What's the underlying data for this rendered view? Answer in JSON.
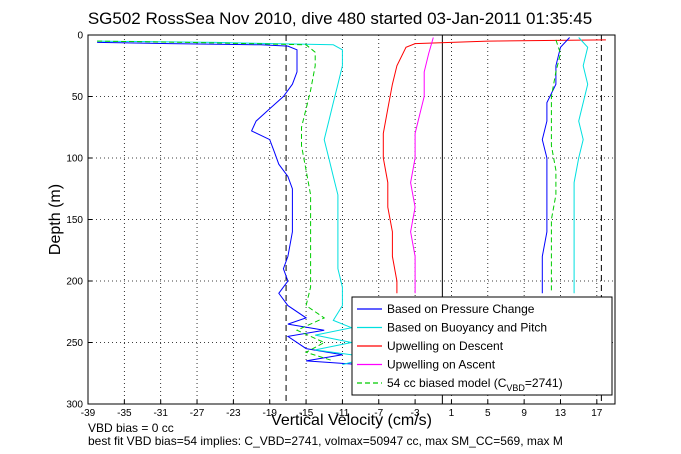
{
  "chart_data": {
    "type": "line",
    "title": "SG502 RossSea Nov 2010, dive 480 started 03-Jan-2011 01:35:45",
    "xlabel": "Vertical Velocity (cm/s)",
    "ylabel": "Depth (m)",
    "xlim": [
      -39,
      19
    ],
    "ylim": [
      300,
      0
    ],
    "y_reversed": true,
    "grid": true,
    "x_ticks": [
      -39,
      -35,
      -31,
      -27,
      -23,
      -19,
      -15,
      -11,
      -7,
      -3,
      1,
      5,
      9,
      13,
      17
    ],
    "y_ticks": [
      0,
      50,
      100,
      150,
      200,
      250,
      300
    ],
    "reference_lines": {
      "solid_x": [
        0
      ],
      "dashed_x": [
        -17.2,
        17.5
      ]
    },
    "legend_placement": "bottom-right",
    "series": [
      {
        "name": "Based on Pressure Change",
        "color": "#0000ff",
        "style": "solid",
        "points": [
          [
            -38,
            6
          ],
          [
            -30,
            7
          ],
          [
            -20,
            8
          ],
          [
            -17,
            9
          ],
          [
            -16,
            12
          ],
          [
            -16,
            20
          ],
          [
            -16,
            30
          ],
          [
            -16.5,
            40
          ],
          [
            -17.5,
            50
          ],
          [
            -19,
            60
          ],
          [
            -20.5,
            70
          ],
          [
            -21,
            78
          ],
          [
            -19,
            85
          ],
          [
            -18.5,
            95
          ],
          [
            -18,
            105
          ],
          [
            -17,
            115
          ],
          [
            -16.5,
            125
          ],
          [
            -16.5,
            140
          ],
          [
            -16.5,
            160
          ],
          [
            -17,
            180
          ],
          [
            -17.5,
            190
          ],
          [
            -17,
            200
          ],
          [
            -18,
            210
          ],
          [
            -17,
            220
          ],
          [
            -15,
            230
          ],
          [
            -17,
            235
          ],
          [
            -13,
            240
          ],
          [
            -17,
            245
          ],
          [
            -15,
            255
          ],
          [
            -11,
            260
          ],
          [
            -15,
            265
          ],
          [
            -9,
            268
          ]
        ]
      },
      {
        "name": "Based on Buoyancy and Pitch",
        "color": "#00e0e0",
        "style": "solid",
        "points": [
          [
            -38,
            5
          ],
          [
            -25,
            6
          ],
          [
            -12,
            8
          ],
          [
            -11,
            12
          ],
          [
            -11,
            25
          ],
          [
            -11.5,
            40
          ],
          [
            -12,
            55
          ],
          [
            -12.5,
            70
          ],
          [
            -13,
            85
          ],
          [
            -12.5,
            100
          ],
          [
            -12,
            115
          ],
          [
            -11.5,
            130
          ],
          [
            -11.5,
            150
          ],
          [
            -11.5,
            170
          ],
          [
            -11.5,
            190
          ],
          [
            -11,
            205
          ],
          [
            -11,
            220
          ],
          [
            -12,
            232
          ],
          [
            -10,
            238
          ],
          [
            -14,
            244
          ],
          [
            -10,
            250
          ],
          [
            -14,
            256
          ],
          [
            -8,
            262
          ],
          [
            -11,
            268
          ]
        ]
      },
      {
        "name": "Upwelling on Descent",
        "color": "#ff0000",
        "style": "solid",
        "points": [
          [
            18,
            4
          ],
          [
            5,
            5
          ],
          [
            -3,
            7
          ],
          [
            -4,
            10
          ],
          [
            -5,
            25
          ],
          [
            -5.5,
            40
          ],
          [
            -6,
            60
          ],
          [
            -6.5,
            80
          ],
          [
            -6.5,
            100
          ],
          [
            -6,
            120
          ],
          [
            -6,
            140
          ],
          [
            -5.5,
            160
          ],
          [
            -5.5,
            180
          ],
          [
            -5,
            200
          ],
          [
            -5,
            210
          ]
        ]
      },
      {
        "name": "Upwelling on Ascent",
        "color": "#ff00ff",
        "style": "solid",
        "points": [
          [
            -1,
            2
          ],
          [
            -1.5,
            15
          ],
          [
            -2,
            30
          ],
          [
            -2,
            50
          ],
          [
            -2.5,
            65
          ],
          [
            -3,
            80
          ],
          [
            -3,
            100
          ],
          [
            -3.5,
            120
          ],
          [
            -3,
            140
          ],
          [
            -3.5,
            160
          ],
          [
            -3,
            180
          ],
          [
            -3,
            200
          ],
          [
            -3,
            210
          ]
        ]
      },
      {
        "name": "54 cc biased model (C_VBD=2741)",
        "color": "#00cc00",
        "style": "dashed",
        "points": [
          [
            -38,
            5
          ],
          [
            -28,
            6
          ],
          [
            -15,
            8
          ],
          [
            -14,
            14
          ],
          [
            -14,
            25
          ],
          [
            -14.5,
            45
          ],
          [
            -15,
            60
          ],
          [
            -15.5,
            75
          ],
          [
            -15.5,
            90
          ],
          [
            -15,
            110
          ],
          [
            -14.5,
            130
          ],
          [
            -14.5,
            150
          ],
          [
            -14.5,
            170
          ],
          [
            -14.5,
            190
          ],
          [
            -14.5,
            205
          ],
          [
            -15,
            220
          ],
          [
            -13,
            230
          ],
          [
            -16,
            240
          ],
          [
            -13,
            250
          ],
          [
            -15,
            258
          ],
          [
            -12,
            265
          ]
        ]
      },
      {
        "name": "Based on Pressure Change (ascent)",
        "color": "#0000ff",
        "style": "solid",
        "points": [
          [
            14,
            2
          ],
          [
            13,
            10
          ],
          [
            12.5,
            25
          ],
          [
            12.5,
            40
          ],
          [
            11.5,
            55
          ],
          [
            11.5,
            70
          ],
          [
            11,
            85
          ],
          [
            11.5,
            100
          ],
          [
            11.5,
            120
          ],
          [
            11.5,
            140
          ],
          [
            11.5,
            160
          ],
          [
            11,
            180
          ],
          [
            11,
            200
          ],
          [
            11,
            210
          ]
        ]
      },
      {
        "name": "Based on Buoyancy and Pitch (ascent)",
        "color": "#00e0e0",
        "style": "solid",
        "points": [
          [
            15,
            2
          ],
          [
            16,
            10
          ],
          [
            15.5,
            25
          ],
          [
            16,
            40
          ],
          [
            15.5,
            55
          ],
          [
            15,
            70
          ],
          [
            15.5,
            85
          ],
          [
            15,
            100
          ],
          [
            14.5,
            120
          ],
          [
            14.5,
            140
          ],
          [
            14.5,
            160
          ],
          [
            14.5,
            180
          ],
          [
            14.5,
            200
          ],
          [
            14.5,
            210
          ]
        ]
      },
      {
        "name": "54 cc biased model (ascent)",
        "color": "#00cc00",
        "style": "dashed",
        "points": [
          [
            12.5,
            4
          ],
          [
            13,
            15
          ],
          [
            12.5,
            30
          ],
          [
            12,
            50
          ],
          [
            12,
            70
          ],
          [
            12,
            90
          ],
          [
            12.5,
            110
          ],
          [
            12.5,
            130
          ],
          [
            12,
            150
          ],
          [
            12,
            170
          ],
          [
            12,
            190
          ],
          [
            12,
            210
          ]
        ]
      }
    ],
    "legend": [
      {
        "label": "Based on Pressure Change",
        "color": "#0000ff",
        "style": "solid"
      },
      {
        "label": "Based on Buoyancy and Pitch",
        "color": "#00e0e0",
        "style": "solid"
      },
      {
        "label": "Upwelling on Descent",
        "color": "#ff0000",
        "style": "solid"
      },
      {
        "label": "Upwelling on Ascent",
        "color": "#ff00ff",
        "style": "solid"
      },
      {
        "label": "54 cc biased model (C",
        "sub": "VBD",
        "suffix": "=2741)",
        "color": "#00cc00",
        "style": "dashed"
      }
    ]
  },
  "footer": {
    "line1": "VBD bias = 0 cc",
    "line2": "best fit VBD bias=54 implies: C_VBD=2741, volmax=50947 cc, max SM_CC=569, max M"
  }
}
